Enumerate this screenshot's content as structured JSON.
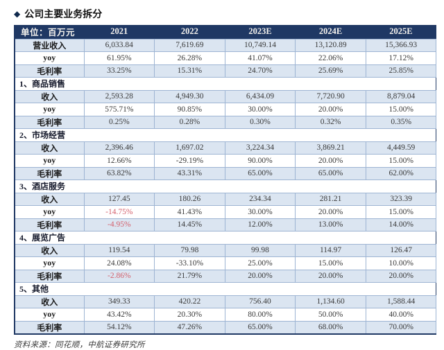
{
  "page": {
    "title_marker": "◆",
    "title": "公司主要业务拆分",
    "source_note": "资料来源：同花顺，中航证券研究所"
  },
  "colors": {
    "header_bg": "#1f3864",
    "header_text": "#f5f3ee",
    "row_shade": "#dbe5f1",
    "grid_border": "#9db4d3",
    "negative_red": "#d4606c",
    "body_text": "#3a3a3a"
  },
  "chart_data": {
    "type": "table",
    "title": "公司主要业务拆分",
    "unit_label": "单位：百万元",
    "columns": [
      "2021",
      "2022",
      "2023E",
      "2024E",
      "2025E"
    ],
    "rows": [
      {
        "type": "data",
        "label": "营业收入",
        "values": [
          "6,033.84",
          "7,619.69",
          "10,749.14",
          "13,120.89",
          "15,366.93"
        ]
      },
      {
        "type": "data",
        "label": "yoy",
        "values": [
          "61.95%",
          "26.28%",
          "41.07%",
          "22.06%",
          "17.12%"
        ]
      },
      {
        "type": "data",
        "label": "毛利率",
        "values": [
          "33.25%",
          "15.31%",
          "24.70%",
          "25.69%",
          "25.85%"
        ]
      },
      {
        "type": "section",
        "label": "1、商品销售"
      },
      {
        "type": "data",
        "label": "收入",
        "values": [
          "2,593.28",
          "4,949.30",
          "6,434.09",
          "7,720.90",
          "8,879.04"
        ]
      },
      {
        "type": "data",
        "label": "yoy",
        "values": [
          "575.71%",
          "90.85%",
          "30.00%",
          "20.00%",
          "15.00%"
        ]
      },
      {
        "type": "data",
        "label": "毛利率",
        "values": [
          "0.25%",
          "0.28%",
          "0.30%",
          "0.32%",
          "0.35%"
        ]
      },
      {
        "type": "section",
        "label": "2、市场经营"
      },
      {
        "type": "data",
        "label": "收入",
        "values": [
          "2,396.46",
          "1,697.02",
          "3,224.34",
          "3,869.21",
          "4,449.59"
        ]
      },
      {
        "type": "data",
        "label": "yoy",
        "values": [
          "12.66%",
          "-29.19%",
          "90.00%",
          "20.00%",
          "15.00%"
        ]
      },
      {
        "type": "data",
        "label": "毛利率",
        "values": [
          "63.82%",
          "43.31%",
          "65.00%",
          "65.00%",
          "62.00%"
        ]
      },
      {
        "type": "section",
        "label": "3、酒店服务"
      },
      {
        "type": "data",
        "label": "收入",
        "values": [
          "127.45",
          "180.26",
          "234.34",
          "281.21",
          "323.39"
        ]
      },
      {
        "type": "data",
        "label": "yoy",
        "values": [
          "-14.75%",
          "41.43%",
          "30.00%",
          "20.00%",
          "15.00%"
        ],
        "red_cols": [
          0
        ]
      },
      {
        "type": "data",
        "label": "毛利率",
        "values": [
          "-4.95%",
          "14.45%",
          "12.00%",
          "13.00%",
          "14.00%"
        ],
        "red_cols": [
          0
        ]
      },
      {
        "type": "section",
        "label": "4、展览广告"
      },
      {
        "type": "data",
        "label": "收入",
        "values": [
          "119.54",
          "79.98",
          "99.98",
          "114.97",
          "126.47"
        ]
      },
      {
        "type": "data",
        "label": "yoy",
        "values": [
          "24.08%",
          "-33.10%",
          "25.00%",
          "15.00%",
          "10.00%"
        ]
      },
      {
        "type": "data",
        "label": "毛利率",
        "values": [
          "-2.86%",
          "21.79%",
          "20.00%",
          "20.00%",
          "20.00%"
        ],
        "red_cols": [
          0
        ]
      },
      {
        "type": "section",
        "label": "5、其他"
      },
      {
        "type": "data",
        "label": "收入",
        "values": [
          "349.33",
          "420.22",
          "756.40",
          "1,134.60",
          "1,588.44"
        ]
      },
      {
        "type": "data",
        "label": "yoy",
        "values": [
          "43.42%",
          "20.30%",
          "80.00%",
          "50.00%",
          "40.00%"
        ]
      },
      {
        "type": "data",
        "label": "毛利率",
        "values": [
          "54.12%",
          "47.26%",
          "65.00%",
          "68.00%",
          "70.00%"
        ]
      }
    ]
  }
}
